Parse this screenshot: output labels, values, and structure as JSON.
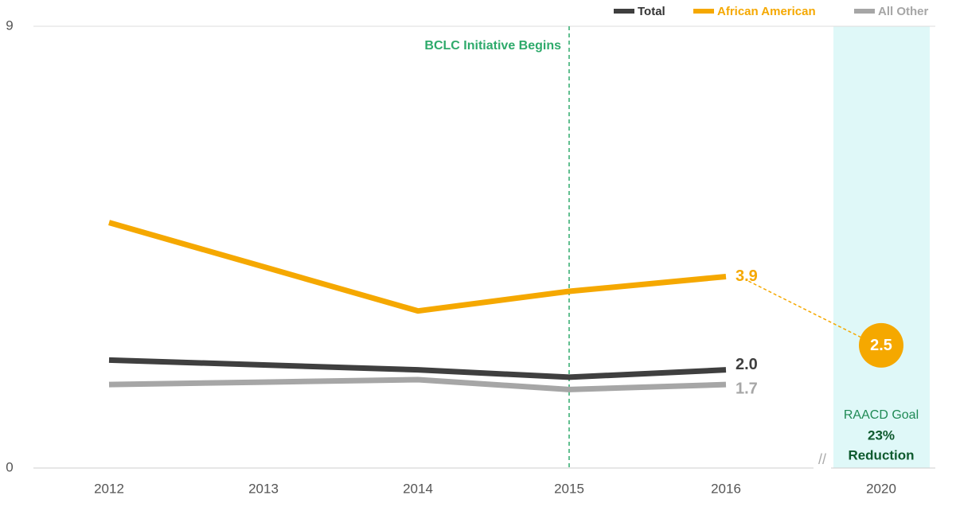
{
  "chart_data": {
    "type": "line",
    "categories": [
      "2012",
      "2013",
      "2014",
      "2015",
      "2016",
      "2020"
    ],
    "series": [
      {
        "name": "Total",
        "color": "#3f3f3f",
        "values": [
          2.2,
          2.1,
          2.0,
          1.85,
          2.0,
          null
        ],
        "value_labels": [
          null,
          null,
          null,
          null,
          "2.0",
          null
        ]
      },
      {
        "name": "African American",
        "color": "#f5a800",
        "values": [
          5.0,
          4.1,
          3.2,
          3.6,
          3.9,
          null
        ],
        "value_labels": [
          null,
          null,
          null,
          null,
          "3.9",
          null
        ]
      },
      {
        "name": "All Other",
        "color": "#a6a6a6",
        "values": [
          1.7,
          1.75,
          1.8,
          1.6,
          1.7,
          null
        ],
        "value_labels": [
          null,
          null,
          null,
          null,
          "1.7",
          null
        ]
      }
    ],
    "ylim": [
      0,
      9
    ],
    "yticks": [
      0,
      9
    ],
    "annotation": {
      "category": 3,
      "text": "BCLC Initiative Begins"
    },
    "goal": {
      "category": 5,
      "value": 2.5,
      "label": "RAACD Goal",
      "amount": "23%",
      "text": "Reduction"
    }
  }
}
